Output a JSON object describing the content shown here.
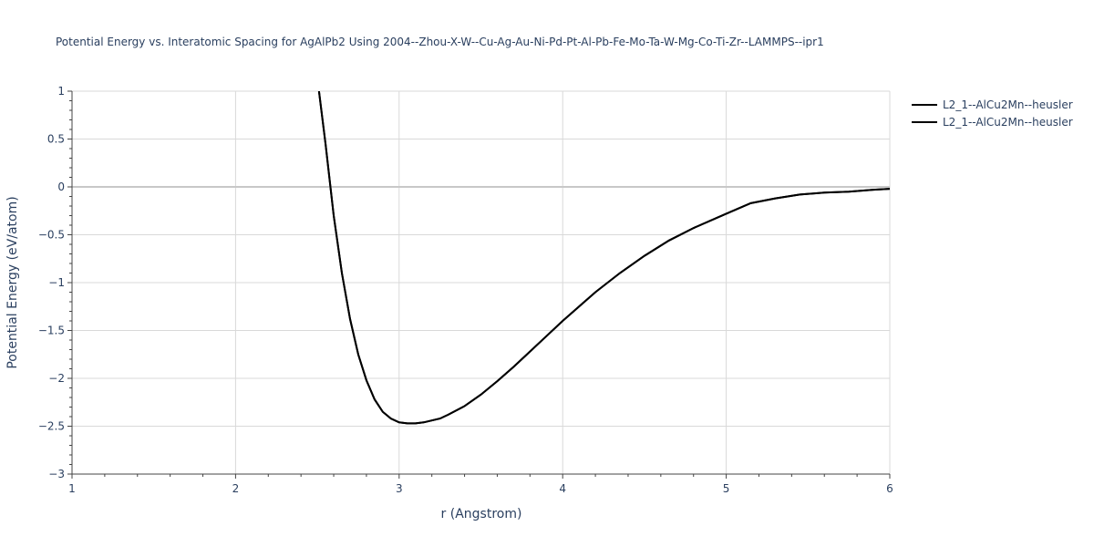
{
  "chart_data": {
    "type": "line",
    "title": "Potential Energy vs. Interatomic Spacing for AgAlPb2 Using 2004--Zhou-X-W--Cu-Ag-Au-Ni-Pd-Pt-Al-Pb-Fe-Mo-Ta-W-Mg-Co-Ti-Zr--LAMMPS--ipr1",
    "xlabel": "r (Angstrom)",
    "ylabel": "Potential Energy (eV/atom)",
    "xlim": [
      1,
      6
    ],
    "ylim": [
      -3,
      1
    ],
    "x_ticks": [
      "1",
      "2",
      "3",
      "4",
      "5",
      "6"
    ],
    "y_ticks": [
      "1",
      "0.5",
      "0",
      "−0.5",
      "−1",
      "−1.5",
      "−2",
      "−2.5",
      "−3"
    ],
    "grid": true,
    "legend_position": "top-right",
    "series": [
      {
        "name": "L2_1--AlCu2Mn--heusler",
        "color": "#000000",
        "x": [
          2.51,
          2.55,
          2.6,
          2.65,
          2.7,
          2.75,
          2.8,
          2.85,
          2.9,
          2.95,
          3.0,
          3.05,
          3.1,
          3.15,
          3.2,
          3.25,
          3.3,
          3.4,
          3.5,
          3.6,
          3.7,
          3.8,
          3.9,
          4.0,
          4.1,
          4.2,
          4.35,
          4.5,
          4.65,
          4.8,
          5.0,
          5.15,
          5.3,
          5.45,
          5.6,
          5.75,
          5.9,
          6.0
        ],
        "y": [
          1.0,
          0.45,
          -0.3,
          -0.9,
          -1.38,
          -1.75,
          -2.02,
          -2.22,
          -2.35,
          -2.42,
          -2.46,
          -2.47,
          -2.47,
          -2.46,
          -2.44,
          -2.42,
          -2.38,
          -2.29,
          -2.17,
          -2.03,
          -1.88,
          -1.72,
          -1.56,
          -1.4,
          -1.25,
          -1.1,
          -0.9,
          -0.72,
          -0.56,
          -0.43,
          -0.28,
          -0.17,
          -0.12,
          -0.08,
          -0.06,
          -0.05,
          -0.03,
          -0.02
        ]
      },
      {
        "name": "L2_1--AlCu2Mn--heusler",
        "color": "#000000",
        "x": [
          2.51,
          2.55,
          2.6,
          2.65,
          2.7,
          2.75,
          2.8,
          2.85,
          2.9,
          2.95,
          3.0,
          3.05,
          3.1,
          3.15,
          3.2,
          3.25,
          3.3,
          3.4,
          3.5,
          3.6,
          3.7,
          3.8,
          3.9,
          4.0,
          4.1,
          4.2,
          4.35,
          4.5,
          4.65,
          4.8,
          5.0,
          5.15,
          5.3,
          5.45,
          5.6,
          5.75,
          5.9,
          6.0
        ],
        "y": [
          1.0,
          0.45,
          -0.3,
          -0.9,
          -1.38,
          -1.75,
          -2.02,
          -2.22,
          -2.35,
          -2.42,
          -2.46,
          -2.47,
          -2.47,
          -2.46,
          -2.44,
          -2.42,
          -2.38,
          -2.29,
          -2.17,
          -2.03,
          -1.88,
          -1.72,
          -1.56,
          -1.4,
          -1.25,
          -1.1,
          -0.9,
          -0.72,
          -0.56,
          -0.43,
          -0.28,
          -0.17,
          -0.12,
          -0.08,
          -0.06,
          -0.05,
          -0.03,
          -0.02
        ]
      }
    ]
  }
}
